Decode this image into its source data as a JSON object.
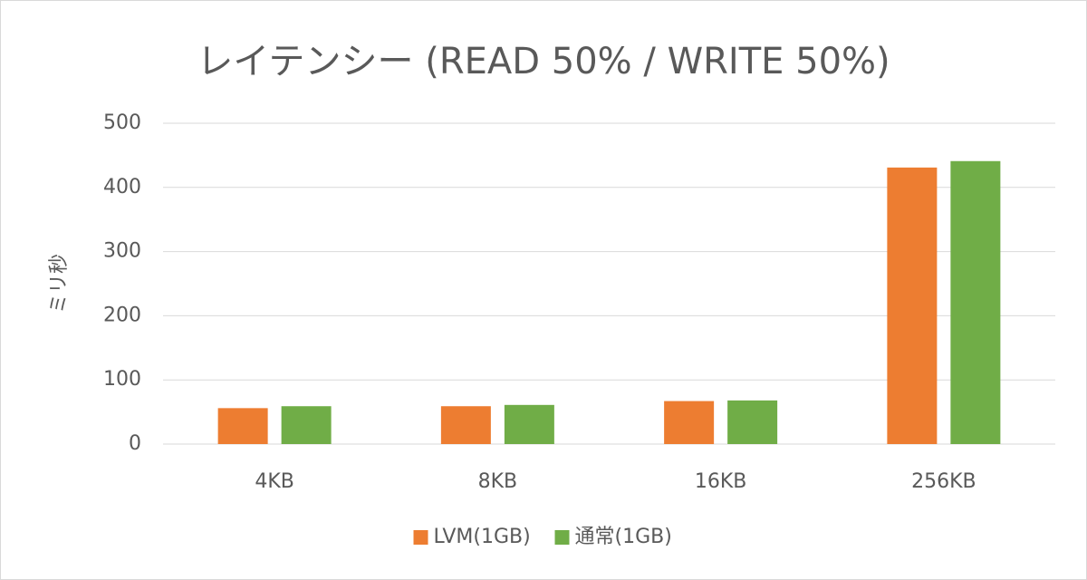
{
  "chart_data": {
    "type": "bar",
    "title": "レイテンシー (READ 50% / WRITE 50%)",
    "y_label": "ミリ秒",
    "categories": [
      "4KB",
      "8KB",
      "16KB",
      "256KB"
    ],
    "series": [
      {
        "name": "LVM(1GB)",
        "color": "#ed7d31",
        "values": [
          56,
          59,
          67,
          431
        ]
      },
      {
        "name": "通常(1GB)",
        "color": "#70ad47",
        "values": [
          59,
          61,
          68,
          441
        ]
      }
    ],
    "ylim": [
      0,
      500
    ],
    "yticks": [
      0,
      100,
      200,
      300,
      400,
      500
    ],
    "grid": true,
    "legend": "bottom"
  }
}
